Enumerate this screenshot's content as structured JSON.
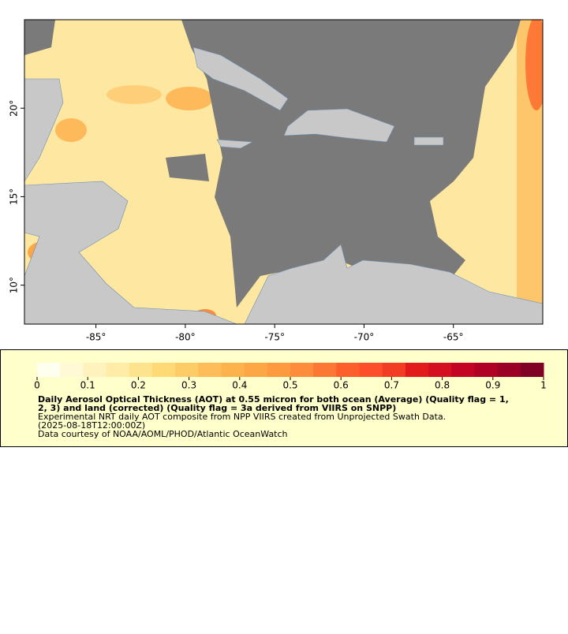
{
  "map": {
    "xlim": [
      -89,
      -60
    ],
    "ylim": [
      7.8,
      25
    ],
    "xticks": [
      {
        "value": -85,
        "label": "-85°"
      },
      {
        "value": -80,
        "label": "-80°"
      },
      {
        "value": -75,
        "label": "-75°"
      },
      {
        "value": -70,
        "label": "-70°"
      },
      {
        "value": -65,
        "label": "-65°"
      }
    ],
    "yticks": [
      {
        "value": 10,
        "label": "10°"
      },
      {
        "value": 15,
        "label": "15°"
      },
      {
        "value": 20,
        "label": "20°"
      }
    ]
  },
  "colorbar": {
    "lim": [
      0,
      1
    ],
    "ticks": [
      0,
      0.1,
      0.2,
      0.3,
      0.4,
      0.5,
      0.6,
      0.7,
      0.8,
      0.9,
      1
    ],
    "colors": [
      "#fffff0",
      "#fff9d6",
      "#fff3bd",
      "#ffeca6",
      "#fee38f",
      "#fed976",
      "#fecc66",
      "#febd58",
      "#feb24c",
      "#fda646",
      "#fd9a40",
      "#fd8d3c",
      "#fc7634",
      "#fc5f2c",
      "#fc4e2a",
      "#f23c24",
      "#e31a1c",
      "#d40f20",
      "#c40424",
      "#b10026",
      "#9a0026",
      "#800026"
    ]
  },
  "caption": {
    "title_lines": [
      "Daily Aerosol Optical Thickness (AOT) at 0.55 micron for both ocean (Average) (Quality flag = 1,",
      "2, 3) and land (corrected) (Quality flag = 3a derived from VIIRS on SNPP)"
    ],
    "lines": [
      "Experimental NRT daily AOT composite from NPP VIIRS created from Unprojected Swath Data.",
      "(2025-08-18T12:00:00Z)",
      "Data courtesy of NOAA/AOML/PHOD/Atlantic OceanWatch"
    ]
  }
}
